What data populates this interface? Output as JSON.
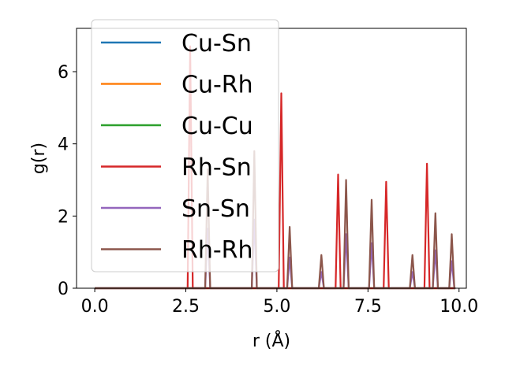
{
  "chart_data": {
    "type": "line",
    "title": "",
    "xlabel": "r (Å)",
    "ylabel": "g(r)",
    "xlim": [
      -0.5,
      10.2
    ],
    "ylim": [
      0,
      7.2
    ],
    "xticks": [
      0.0,
      2.5,
      5.0,
      7.5,
      10.0
    ],
    "xtick_labels": [
      "0.0",
      "2.5",
      "5.0",
      "7.5",
      "10.0"
    ],
    "yticks": [
      0,
      2,
      4,
      6
    ],
    "ytick_labels": [
      "0",
      "2",
      "4",
      "6"
    ],
    "grid": false,
    "legend_position": "upper-left",
    "series": [
      {
        "name": "Cu-Sn",
        "color": "#1f77b4",
        "peaks": []
      },
      {
        "name": "Cu-Rh",
        "color": "#ff7f0e",
        "peaks": []
      },
      {
        "name": "Cu-Cu",
        "color": "#2ca02c",
        "peaks": []
      },
      {
        "name": "Rh-Sn",
        "color": "#d62728",
        "peaks": [
          {
            "r": 2.62,
            "g": 6.7
          },
          {
            "r": 5.12,
            "g": 5.4
          },
          {
            "r": 6.68,
            "g": 3.15
          },
          {
            "r": 8.0,
            "g": 2.95
          },
          {
            "r": 9.12,
            "g": 3.45
          }
        ]
      },
      {
        "name": "Sn-Sn",
        "color": "#9467bd",
        "peaks": [
          {
            "r": 3.1,
            "g": 1.65
          },
          {
            "r": 4.38,
            "g": 1.9
          },
          {
            "r": 5.35,
            "g": 0.85
          },
          {
            "r": 6.22,
            "g": 0.45
          },
          {
            "r": 6.9,
            "g": 1.5
          },
          {
            "r": 7.6,
            "g": 1.25
          },
          {
            "r": 8.72,
            "g": 0.45
          },
          {
            "r": 9.35,
            "g": 1.05
          },
          {
            "r": 9.8,
            "g": 0.75
          }
        ]
      },
      {
        "name": "Rh-Rh",
        "color": "#8c564b",
        "peaks": [
          {
            "r": 3.1,
            "g": 3.3
          },
          {
            "r": 4.38,
            "g": 3.8
          },
          {
            "r": 5.35,
            "g": 1.7
          },
          {
            "r": 6.22,
            "g": 0.92
          },
          {
            "r": 6.9,
            "g": 3.0
          },
          {
            "r": 7.6,
            "g": 2.45
          },
          {
            "r": 8.72,
            "g": 0.92
          },
          {
            "r": 9.35,
            "g": 2.08
          },
          {
            "r": 9.8,
            "g": 1.5
          }
        ]
      }
    ]
  }
}
